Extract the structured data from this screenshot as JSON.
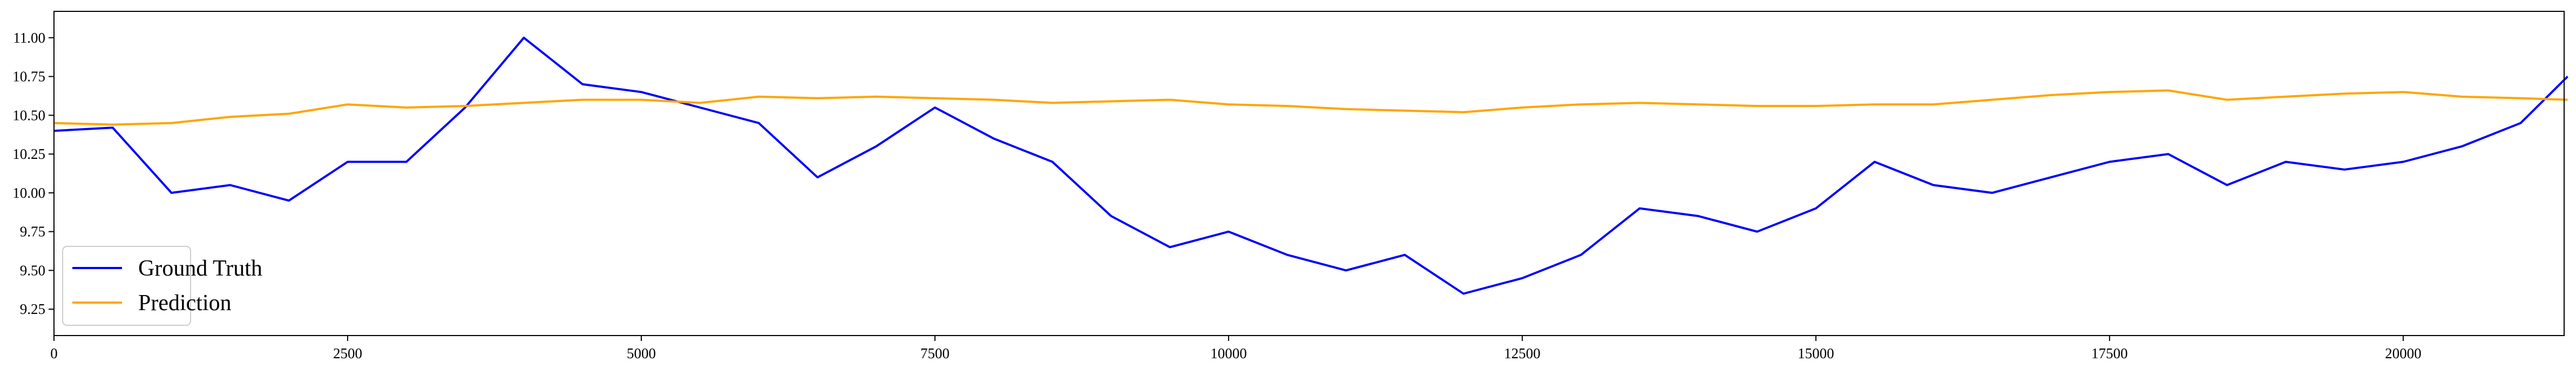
{
  "chart_data": {
    "type": "line",
    "x": [
      0,
      500,
      1000,
      1500,
      2000,
      2500,
      3000,
      3500,
      4000,
      4500,
      5000,
      5500,
      6000,
      6500,
      7000,
      7500,
      8000,
      8500,
      9000,
      9500,
      10000,
      10500,
      11000,
      11500,
      12000,
      12500,
      13000,
      13500,
      14000,
      14500,
      15000,
      15500,
      16000,
      16500,
      17000,
      17500,
      18000,
      18500,
      19000,
      19500,
      20000,
      20500,
      21000,
      21400
    ],
    "series": [
      {
        "name": "Ground Truth",
        "color": "#0000ff",
        "values": [
          10.4,
          10.42,
          10.0,
          10.05,
          9.95,
          10.2,
          10.2,
          10.55,
          11.0,
          10.7,
          10.65,
          10.55,
          10.45,
          10.1,
          10.3,
          10.55,
          10.35,
          10.2,
          9.85,
          9.65,
          9.75,
          9.6,
          9.5,
          9.6,
          9.35,
          9.45,
          9.6,
          9.9,
          9.85,
          9.75,
          9.9,
          10.2,
          10.05,
          10.0,
          10.1,
          10.2,
          10.25,
          10.05,
          10.2,
          10.15,
          10.2,
          10.3,
          10.45,
          10.75
        ]
      },
      {
        "name": "Prediction",
        "color": "#ffa500",
        "values": [
          10.45,
          10.44,
          10.45,
          10.49,
          10.51,
          10.57,
          10.55,
          10.56,
          10.58,
          10.6,
          10.6,
          10.58,
          10.62,
          10.61,
          10.62,
          10.61,
          10.6,
          10.58,
          10.59,
          10.6,
          10.57,
          10.56,
          10.54,
          10.53,
          10.52,
          10.55,
          10.57,
          10.58,
          10.57,
          10.56,
          10.56,
          10.57,
          10.57,
          10.6,
          10.63,
          10.65,
          10.66,
          10.6,
          10.62,
          10.64,
          10.65,
          10.62,
          10.61,
          10.6
        ]
      }
    ],
    "xlim": [
      0,
      21370
    ],
    "ylim": [
      9.08,
      11.17
    ],
    "xticks": [
      0,
      2500,
      5000,
      7500,
      10000,
      12500,
      15000,
      17500,
      20000
    ],
    "yticks": [
      9.25,
      {
        "value": 9.5,
        "label": "9.50"
      },
      9.75,
      {
        "value": 10,
        "label": "10.00"
      },
      10.25,
      {
        "value": 10.5,
        "label": "10.50"
      },
      10.75,
      {
        "value": 11,
        "label": "11.00"
      }
    ],
    "legend": "lower left"
  }
}
